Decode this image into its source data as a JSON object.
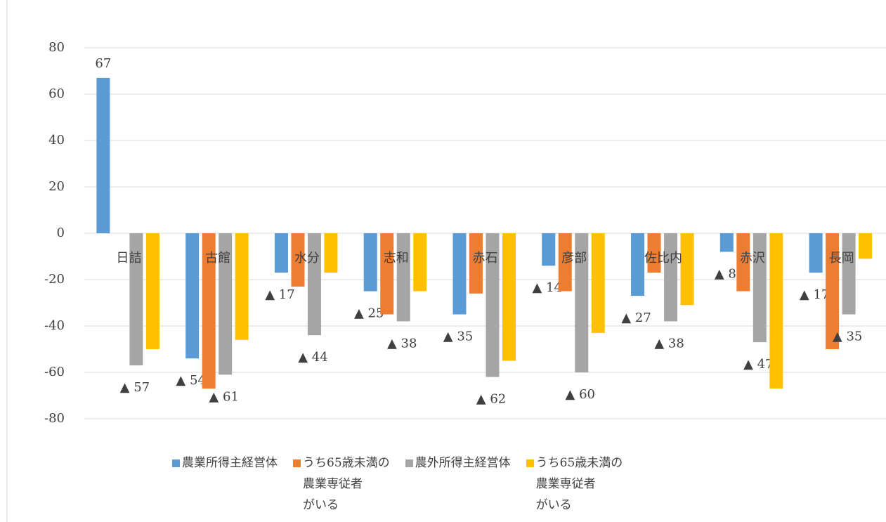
{
  "chart_data": {
    "type": "bar",
    "categories": [
      "日詰",
      "古館",
      "水分",
      "志和",
      "赤石",
      "彦部",
      "佐比内",
      "赤沢",
      "長岡"
    ],
    "series": [
      {
        "name": "農業所得主経営体",
        "color": "#5b9bd5",
        "values": [
          67,
          -54,
          -17,
          -25,
          -35,
          -14,
          -27,
          -8,
          -17
        ],
        "value_labels": [
          "67",
          "▲ 54",
          "▲ 17",
          "▲ 25",
          "▲ 35",
          "▲ 14",
          "▲ 27",
          "▲ 8",
          "▲ 17"
        ]
      },
      {
        "name": "うち65歳未満の\n農業専従者\nがいる",
        "color": "#ed7d31",
        "values": [
          0,
          -67,
          -23,
          -35,
          -26,
          -25,
          -17,
          -25,
          -50
        ]
      },
      {
        "name": "農外所得主経営体",
        "color": "#a5a5a5",
        "values": [
          -57,
          -61,
          -44,
          -38,
          -62,
          -60,
          -38,
          -47,
          -35
        ],
        "value_labels": [
          "▲ 57",
          "▲ 61",
          "▲ 44",
          "▲ 38",
          "▲ 62",
          "▲ 60",
          "▲ 38",
          "▲ 47",
          "▲ 35"
        ]
      },
      {
        "name": "うち65歳未満の\n農業専従者\nがいる",
        "color": "#ffc000",
        "values": [
          -50,
          -46,
          -17,
          -25,
          -55,
          -43,
          -31,
          -67,
          -11
        ]
      }
    ],
    "ylim": [
      -80,
      80
    ],
    "yticks": [
      -80,
      -60,
      -40,
      -20,
      0,
      20,
      40,
      60,
      80
    ],
    "grid": true
  }
}
